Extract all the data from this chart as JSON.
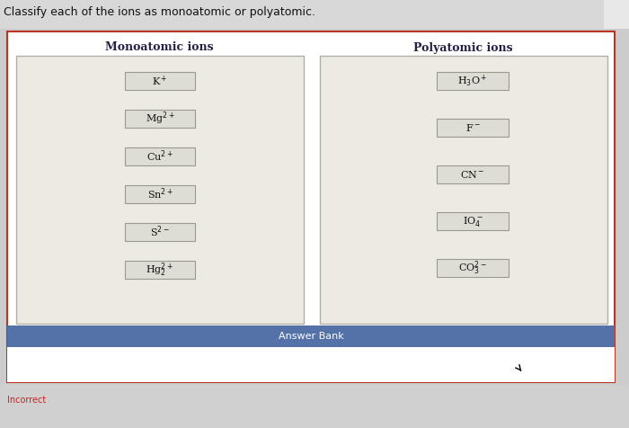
{
  "title": "Classify each of the ions as monoatomic or polyatomic.",
  "monoatomic_label": "Monoatomic ions",
  "polyatomic_label": "Polyatomic ions",
  "monoatomic_ions": [
    "K$^+$",
    "Mg$^{2+}$",
    "Cu$^{2+}$",
    "Sn$^{2+}$",
    "S$^{2-}$",
    "Hg$_2^{2+}$"
  ],
  "polyatomic_ions": [
    "H$_3$O$^+$",
    "F$^-$",
    "CN$^-$",
    "IO$_4^-$",
    "CO$_3^{2-}$"
  ],
  "answer_bank_label": "Answer Bank",
  "incorrect_label": "Incorrect",
  "bg_color": "#cccccc",
  "outer_bg_color": "#ffffff",
  "outer_border_color": "#bb3322",
  "inner_box_bg": "#eceae3",
  "inner_box_border": "#b0b0a8",
  "ion_box_bg": "#ddddd5",
  "ion_box_border": "#999990",
  "answer_bank_bg": "#5572a8",
  "answer_bank_text": "#ffffff",
  "header_text_color": "#222244",
  "incorrect_color": "#cc2222",
  "title_color": "#111111",
  "title_fontsize": 9,
  "header_fontsize": 9,
  "ion_fontsize": 8,
  "ab_fontsize": 8,
  "incorrect_fontsize": 7
}
